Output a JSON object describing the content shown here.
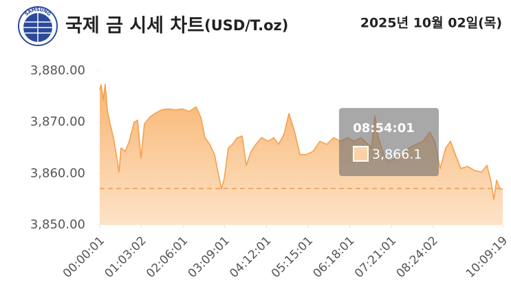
{
  "chart_data": {
    "type": "area",
    "logo_text": "SAMSUNG",
    "title": "국제 금 시세 차트",
    "unit": "(USD/T.oz)",
    "date": "2025년 10월 02일(목)",
    "color": "#f5a04a",
    "x": [
      1,
      126,
      313,
      500,
      687,
      937,
      1249,
      1561,
      1748,
      1935,
      2310,
      2684,
      3121,
      3433,
      3745,
      4057,
      4556,
      4993,
      5617,
      6241,
      6865,
      7489,
      8113,
      8737,
      9174,
      9548,
      9985,
      10422,
      10796,
      11046,
      11295,
      11670,
      12044,
      12481,
      12918,
      13292,
      13729,
      14166,
      14665,
      15289,
      15788,
      16225,
      16724,
      17161,
      17660,
      18159,
      18721,
      19345,
      19969,
      20593,
      21217,
      21841,
      22465,
      23089,
      23713,
      24337,
      24649,
      24961,
      25273,
      25772,
      26209,
      26833,
      27457,
      28081,
      28705,
      29329,
      29953,
      30390,
      30889,
      31388,
      31825,
      32262,
      32761,
      33385,
      34009,
      34633,
      35132,
      35506,
      35756,
      36005,
      36317,
      36559
    ],
    "values": [
      3876.4,
      3877.3,
      3874.4,
      3877.4,
      3872.4,
      3869.7,
      3867.0,
      3863.0,
      3860.3,
      3865.0,
      3864.3,
      3866.3,
      3870.0,
      3870.4,
      3863.0,
      3869.7,
      3871.0,
      3871.7,
      3872.4,
      3872.6,
      3872.4,
      3872.6,
      3872.1,
      3873.0,
      3871.0,
      3867.0,
      3865.7,
      3863.7,
      3859.6,
      3857.0,
      3859.0,
      3865.0,
      3865.7,
      3867.0,
      3867.3,
      3861.6,
      3864.3,
      3865.7,
      3867.0,
      3866.3,
      3867.0,
      3865.7,
      3867.7,
      3871.7,
      3868.3,
      3863.7,
      3863.7,
      3864.3,
      3866.3,
      3865.7,
      3867.0,
      3866.3,
      3867.0,
      3866.3,
      3867.0,
      3865.7,
      3865.0,
      3871.3,
      3867.0,
      3863.7,
      3862.3,
      3863.0,
      3863.7,
      3865.0,
      3865.7,
      3866.3,
      3868.1,
      3866.3,
      3861.0,
      3865.0,
      3866.3,
      3863.7,
      3861.0,
      3861.4,
      3860.6,
      3860.3,
      3861.6,
      3858.3,
      3855.0,
      3858.7,
      3857.0,
      3857.0
    ],
    "reference_line": 3857.1,
    "xlim": [
      1,
      36559
    ],
    "xticks": [
      {
        "value": 1,
        "label": "00:00:01"
      },
      {
        "value": 3782,
        "label": "01:03:02"
      },
      {
        "value": 7561,
        "label": "02:06:01"
      },
      {
        "value": 11341,
        "label": "03:09:01"
      },
      {
        "value": 15121,
        "label": "04:12:01"
      },
      {
        "value": 18901,
        "label": "05:15:01"
      },
      {
        "value": 22681,
        "label": "06:18:01"
      },
      {
        "value": 26461,
        "label": "07:21:01"
      },
      {
        "value": 30242,
        "label": "08:24:02"
      },
      {
        "value": 36559,
        "label": "10:09:19"
      }
    ],
    "ylim": [
      3850,
      3880
    ],
    "yticks": [
      {
        "value": 3850,
        "label": "3,850.00"
      },
      {
        "value": 3860,
        "label": "3,860.00"
      },
      {
        "value": 3870,
        "label": "3,870.00"
      },
      {
        "value": 3880,
        "label": "3,880.00"
      }
    ],
    "tooltip": {
      "time": "08:54:01",
      "value_label": "3,866.1"
    }
  }
}
